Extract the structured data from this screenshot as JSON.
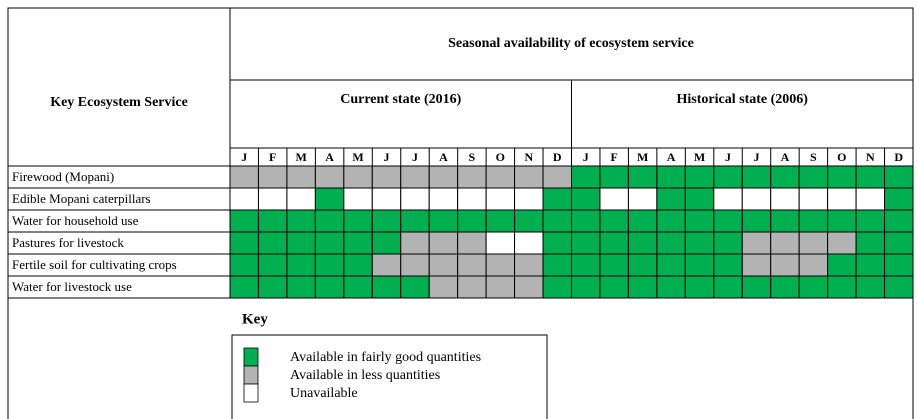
{
  "header": {
    "service_label": "Key Ecosystem Service",
    "seasonal_label": "Seasonal availability of ecosystem service",
    "periods": [
      {
        "label": "Current state (2016)",
        "months": [
          "J",
          "F",
          "M",
          "A",
          "M",
          "J",
          "J",
          "A",
          "S",
          "O",
          "N",
          "D"
        ]
      },
      {
        "label": "Historical state (2006)",
        "months": [
          "J",
          "F",
          "M",
          "A",
          "M",
          "J",
          "J",
          "A",
          "S",
          "O",
          "N",
          "D"
        ]
      }
    ]
  },
  "rows": [
    {
      "service": "Firewood (Mopani)",
      "cells": [
        "#b3b3b3",
        "#b3b3b3",
        "#b3b3b3",
        "#b3b3b3",
        "#b3b3b3",
        "#b3b3b3",
        "#b3b3b3",
        "#b3b3b3",
        "#b3b3b3",
        "#b3b3b3",
        "#b3b3b3",
        "#b3b3b3",
        "#00b050",
        "#00b050",
        "#00b050",
        "#00b050",
        "#00b050",
        "#00b050",
        "#00b050",
        "#00b050",
        "#00b050",
        "#00b050",
        "#00b050",
        "#00b050"
      ]
    },
    {
      "service": "Edible Mopani caterpillars",
      "cells": [
        "#ffffff",
        "#ffffff",
        "#ffffff",
        "#00b050",
        "#ffffff",
        "#ffffff",
        "#ffffff",
        "#ffffff",
        "#ffffff",
        "#ffffff",
        "#ffffff",
        "#00b050",
        "#00b050",
        "#ffffff",
        "#ffffff",
        "#00b050",
        "#00b050",
        "#ffffff",
        "#ffffff",
        "#ffffff",
        "#ffffff",
        "#ffffff",
        "#ffffff",
        "#00b050"
      ]
    },
    {
      "service": "Water for household use",
      "cells": [
        "#00b050",
        "#00b050",
        "#00b050",
        "#00b050",
        "#00b050",
        "#00b050",
        "#00b050",
        "#00b050",
        "#00b050",
        "#00b050",
        "#00b050",
        "#00b050",
        "#00b050",
        "#00b050",
        "#00b050",
        "#00b050",
        "#00b050",
        "#00b050",
        "#00b050",
        "#00b050",
        "#00b050",
        "#00b050",
        "#00b050",
        "#00b050"
      ]
    },
    {
      "service": "Pastures for livestock",
      "cells": [
        "#00b050",
        "#00b050",
        "#00b050",
        "#00b050",
        "#00b050",
        "#00b050",
        "#b3b3b3",
        "#b3b3b3",
        "#b3b3b3",
        "#ffffff",
        "#ffffff",
        "#00b050",
        "#00b050",
        "#00b050",
        "#00b050",
        "#00b050",
        "#00b050",
        "#00b050",
        "#b3b3b3",
        "#b3b3b3",
        "#b3b3b3",
        "#b3b3b3",
        "#00b050",
        "#00b050"
      ]
    },
    {
      "service": "Fertile soil for cultivating crops",
      "cells": [
        "#00b050",
        "#00b050",
        "#00b050",
        "#00b050",
        "#00b050",
        "#b3b3b3",
        "#b3b3b3",
        "#b3b3b3",
        "#b3b3b3",
        "#b3b3b3",
        "#b3b3b3",
        "#00b050",
        "#00b050",
        "#00b050",
        "#00b050",
        "#00b050",
        "#00b050",
        "#00b050",
        "#b3b3b3",
        "#b3b3b3",
        "#b3b3b3",
        "#00b050",
        "#00b050",
        "#00b050"
      ]
    },
    {
      "service": "Water for livestock use",
      "cells": [
        "#00b050",
        "#00b050",
        "#00b050",
        "#00b050",
        "#00b050",
        "#00b050",
        "#00b050",
        "#b3b3b3",
        "#b3b3b3",
        "#b3b3b3",
        "#b3b3b3",
        "#00b050",
        "#00b050",
        "#00b050",
        "#00b050",
        "#00b050",
        "#00b050",
        "#00b050",
        "#00b050",
        "#00b050",
        "#00b050",
        "#00b050",
        "#00b050",
        "#00b050"
      ]
    }
  ],
  "key": {
    "title": "Key",
    "items": [
      {
        "label": "Available in fairly good quantities",
        "color": "#00b050"
      },
      {
        "label": "Available in less quantities",
        "color": "#b3b3b3"
      },
      {
        "label": "Unavailable",
        "color": "#ffffff"
      }
    ]
  }
}
